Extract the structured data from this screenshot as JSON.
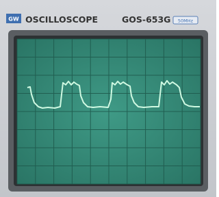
{
  "header": {
    "logo": "GW",
    "title": "OSCILLOSCOPE",
    "model": "GOS-653G",
    "badge": "50MHz"
  }
}
